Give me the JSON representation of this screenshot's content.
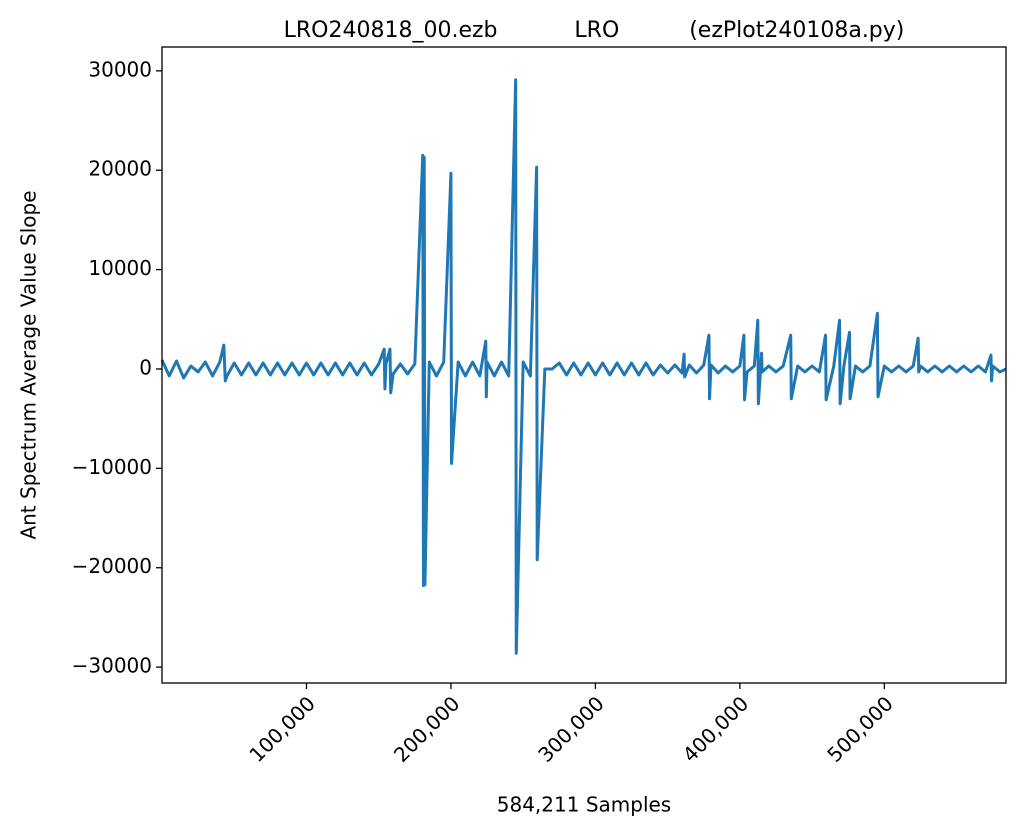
{
  "chart_data": {
    "type": "line",
    "title": "LRO240818_00.ezb           LRO          (ezPlot240108a.py)",
    "xlabel": "584,211 Samples",
    "ylabel": "Ant Spectrum Average Value Slope",
    "xlim": [
      0,
      584211
    ],
    "ylim": [
      -31600,
      32400
    ],
    "xticks": [
      {
        "value": 100000,
        "label": "100,000"
      },
      {
        "value": 200000,
        "label": "200,000"
      },
      {
        "value": 300000,
        "label": "300,000"
      },
      {
        "value": 400000,
        "label": "400,000"
      },
      {
        "value": 500000,
        "label": "500,000"
      }
    ],
    "yticks": [
      {
        "value": -30000,
        "label": "−30000"
      },
      {
        "value": -20000,
        "label": "−20000"
      },
      {
        "value": -10000,
        "label": "−10000"
      },
      0,
      10000,
      20000,
      30000
    ],
    "grid": false,
    "x": [
      0,
      5000,
      10000,
      15000,
      20000,
      25000,
      30000,
      35000,
      40000,
      42800,
      43800,
      45000,
      50000,
      55000,
      60000,
      65000,
      70000,
      75000,
      80000,
      85000,
      90000,
      95000,
      100000,
      105000,
      110000,
      115000,
      120000,
      125000,
      130000,
      135000,
      140000,
      145000,
      150000,
      153800,
      154300,
      155000,
      157800,
      158300,
      160000,
      165000,
      170000,
      175000,
      180500,
      181000,
      181500,
      182000,
      185000,
      190000,
      195000,
      200000,
      200400,
      205000,
      210000,
      215000,
      220000,
      224100,
      224500,
      225000,
      230000,
      235000,
      240000,
      244800,
      245200,
      250000,
      255000,
      259300,
      259700,
      265000,
      270000,
      275000,
      280000,
      285000,
      290000,
      295000,
      300000,
      305000,
      310000,
      315000,
      320000,
      325000,
      330000,
      335000,
      340000,
      345000,
      350000,
      355000,
      360000,
      361400,
      361800,
      365000,
      370000,
      375000,
      378600,
      379000,
      380000,
      385000,
      390000,
      395000,
      400000,
      402800,
      403200,
      405000,
      410000,
      412400,
      412800,
      415000,
      415400,
      420000,
      425000,
      430000,
      435200,
      435600,
      440000,
      445000,
      450000,
      455000,
      459300,
      459700,
      465000,
      469000,
      469400,
      472000,
      475900,
      476300,
      480000,
      485000,
      490000,
      495200,
      495600,
      500000,
      505000,
      510000,
      515000,
      520000,
      523400,
      523800,
      525000,
      530000,
      535000,
      540000,
      545000,
      550000,
      555000,
      560000,
      565000,
      570000,
      573800,
      574200,
      575000,
      580000,
      584211
    ],
    "series": [
      {
        "name": "Ant Spectrum Average Value Slope",
        "color": "#1f77b4",
        "values": [
          900,
          -700,
          800,
          -900,
          300,
          -300,
          700,
          -700,
          700,
          2400,
          -1200,
          -700,
          600,
          -600,
          600,
          -600,
          600,
          -600,
          600,
          -600,
          600,
          -600,
          600,
          -600,
          600,
          -600,
          600,
          -600,
          600,
          -600,
          600,
          -600,
          500,
          2000,
          -2000,
          500,
          2000,
          -2400,
          -500,
          500,
          -500,
          500,
          21500,
          -21800,
          21300,
          -21700,
          700,
          -700,
          700,
          19700,
          -9500,
          700,
          -700,
          700,
          -700,
          2800,
          -2800,
          700,
          -700,
          700,
          -700,
          29100,
          -28600,
          700,
          -700,
          20300,
          -19200,
          0,
          0,
          600,
          -600,
          600,
          -600,
          600,
          -600,
          600,
          -600,
          600,
          -600,
          600,
          -600,
          600,
          -600,
          400,
          -400,
          400,
          -400,
          1500,
          -800,
          400,
          -400,
          400,
          3400,
          -3000,
          400,
          -400,
          300,
          -300,
          300,
          3400,
          -3100,
          -300,
          300,
          4900,
          -3500,
          1600,
          -300,
          300,
          -300,
          300,
          3400,
          -3000,
          300,
          -300,
          300,
          -300,
          3400,
          -3100,
          300,
          4900,
          -3500,
          300,
          3700,
          -3000,
          300,
          -300,
          300,
          5600,
          -2800,
          300,
          -300,
          300,
          -300,
          300,
          3100,
          -300,
          300,
          -300,
          300,
          -300,
          300,
          -300,
          300,
          -300,
          300,
          -300,
          1400,
          -1200,
          300,
          -300,
          0
        ]
      }
    ]
  }
}
